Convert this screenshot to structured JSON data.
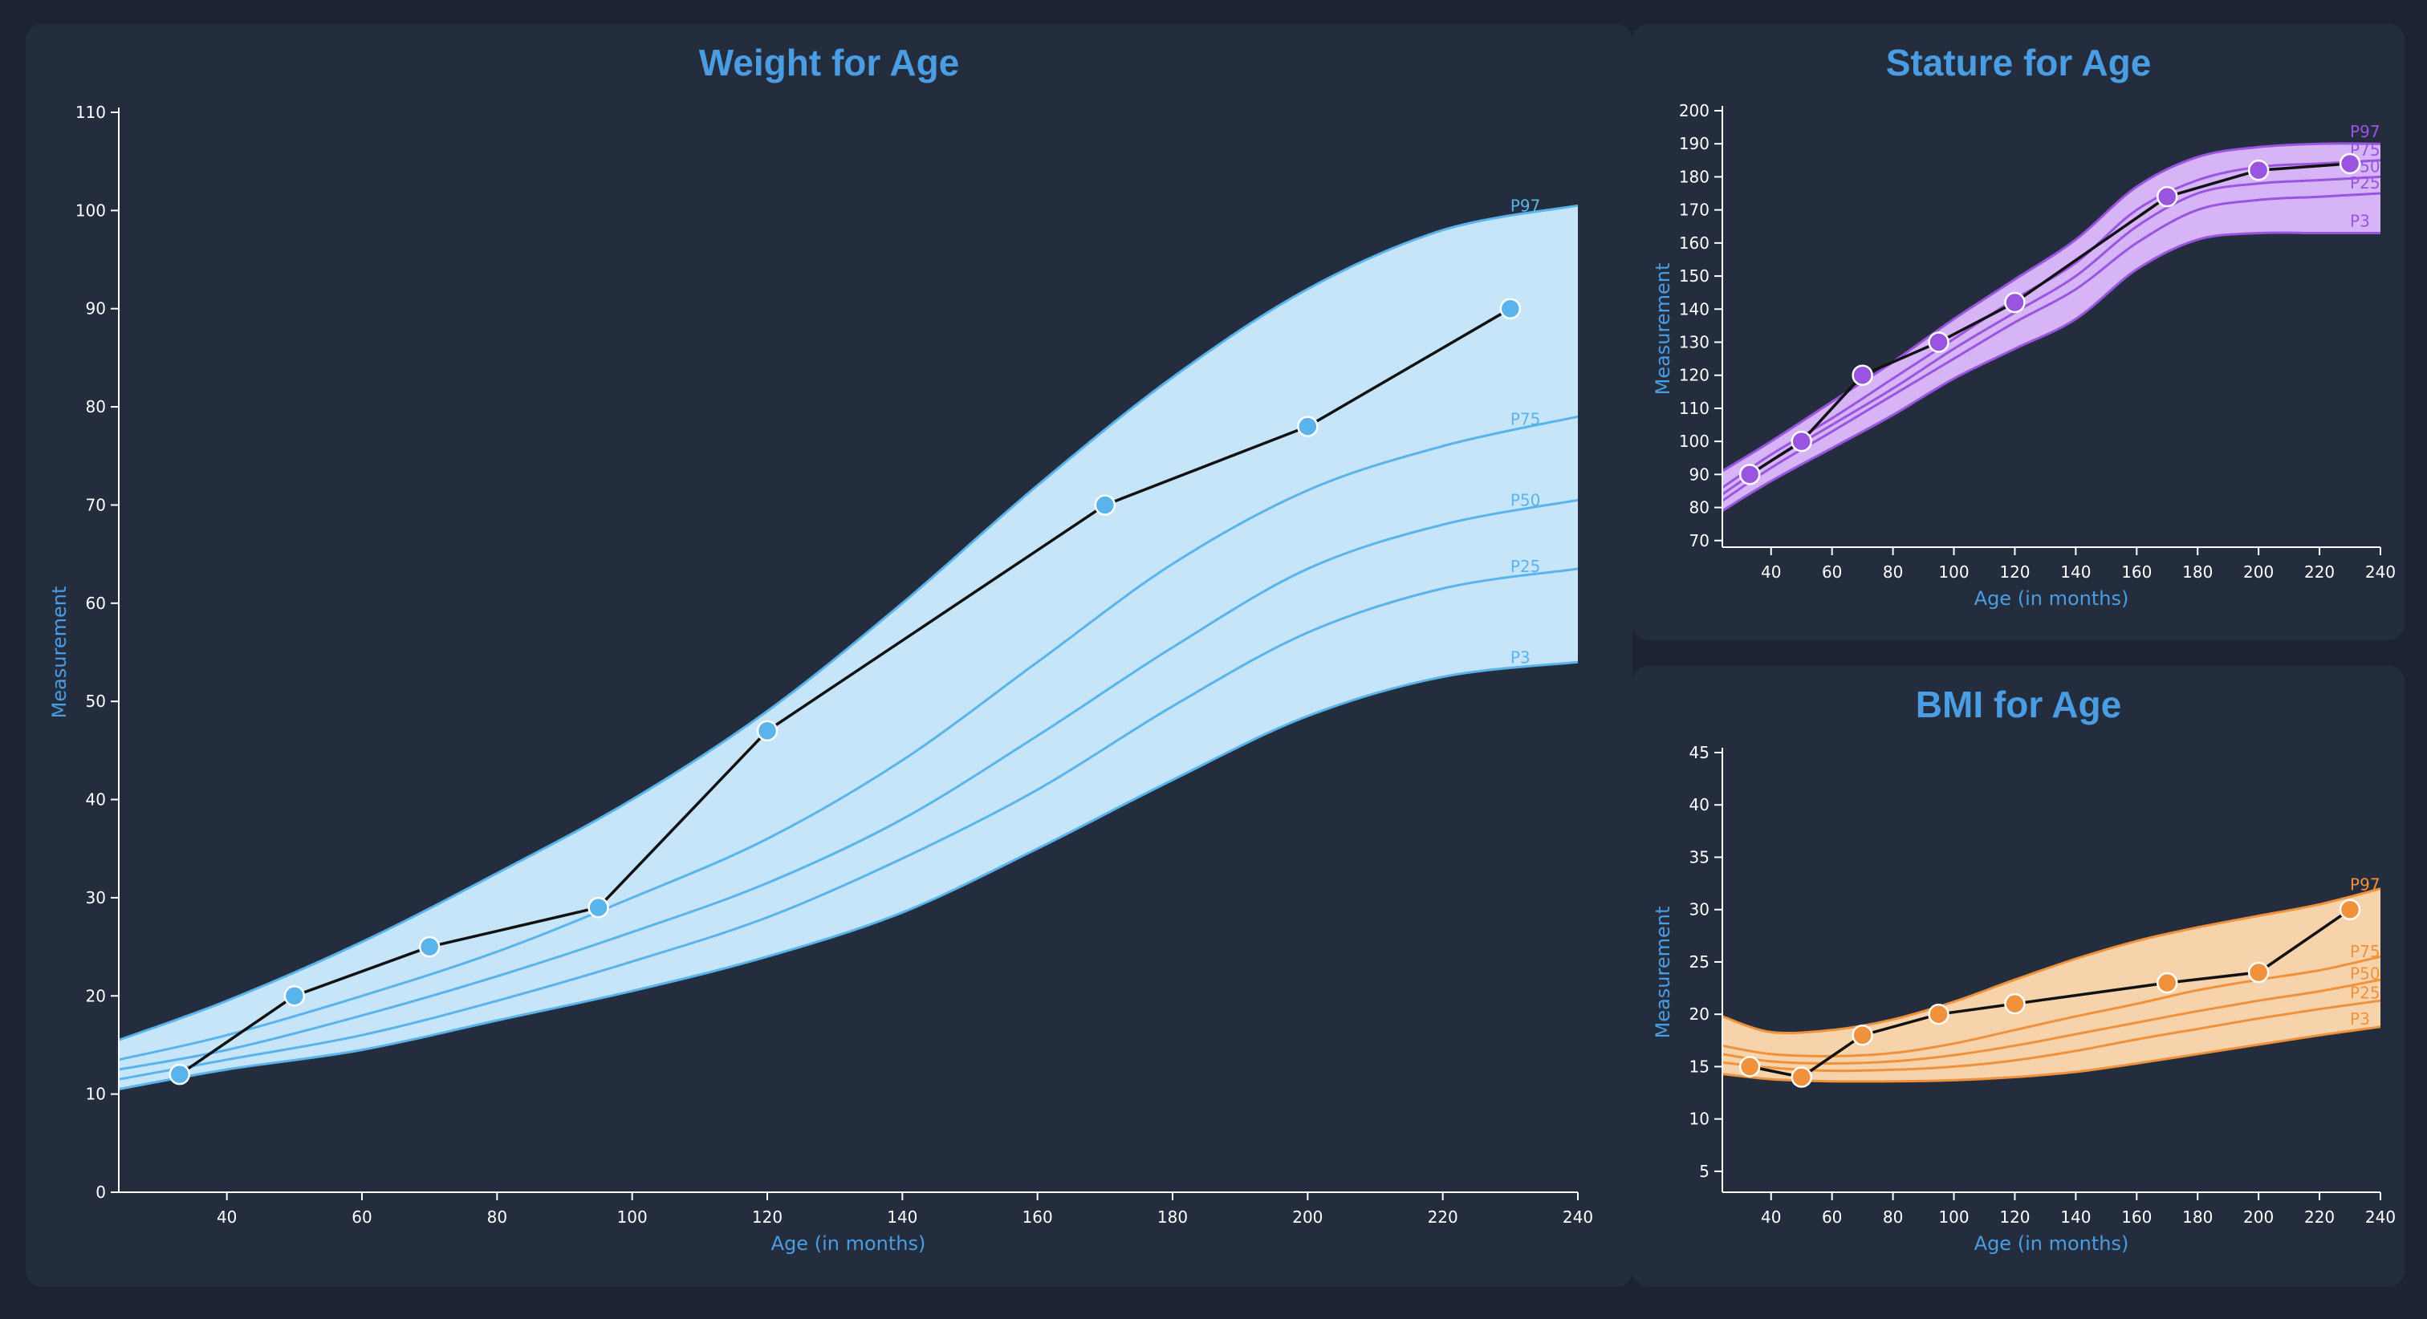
{
  "colors": {
    "background": "#1c2332",
    "panel": "#242d3e",
    "title": "#4a9de3",
    "tick_text": "#ffffff",
    "patient_line": "#111111"
  },
  "chart_data": [
    {
      "id": "weight",
      "type": "line",
      "title": "Weight for Age",
      "xlabel": "Age (in months)",
      "ylabel": "Measurement",
      "xlim": [
        24,
        240
      ],
      "ylim": [
        0,
        110
      ],
      "xticks": [
        40,
        60,
        80,
        100,
        120,
        140,
        160,
        180,
        200,
        220,
        240
      ],
      "yticks": [
        0,
        10,
        20,
        30,
        40,
        50,
        60,
        70,
        80,
        90,
        100,
        110
      ],
      "grid": false,
      "color": "#5ab4ec",
      "band_fill": "#c6e5f8",
      "percentile_x": [
        24,
        40,
        60,
        80,
        100,
        120,
        140,
        160,
        180,
        200,
        220,
        240
      ],
      "percentiles": [
        {
          "name": "P97",
          "values": [
            15.5,
            19.5,
            25.5,
            32.5,
            40.0,
            49.0,
            60.0,
            72.0,
            83.0,
            92.0,
            98.0,
            100.5
          ]
        },
        {
          "name": "P75",
          "values": [
            13.5,
            16.0,
            20.0,
            24.5,
            30.0,
            36.0,
            44.0,
            54.0,
            64.0,
            71.5,
            76.0,
            79.0
          ]
        },
        {
          "name": "P50",
          "values": [
            12.5,
            14.5,
            18.0,
            22.0,
            26.5,
            31.5,
            38.0,
            46.5,
            55.5,
            63.5,
            68.0,
            70.5
          ]
        },
        {
          "name": "P25",
          "values": [
            11.5,
            13.5,
            16.0,
            19.5,
            23.5,
            28.0,
            34.0,
            41.0,
            49.5,
            57.0,
            61.5,
            63.5
          ]
        },
        {
          "name": "P3",
          "values": [
            10.5,
            12.5,
            14.5,
            17.5,
            20.5,
            24.0,
            28.5,
            35.0,
            42.0,
            48.5,
            52.5,
            54.0
          ]
        }
      ],
      "series": [
        {
          "x": [
            33,
            50,
            70,
            95,
            120,
            170,
            200,
            230
          ],
          "values": [
            12,
            20,
            25,
            29,
            47,
            70,
            78,
            90
          ]
        }
      ]
    },
    {
      "id": "stature",
      "type": "line",
      "title": "Stature for Age",
      "xlabel": "Age (in months)",
      "ylabel": "Measurement",
      "xlim": [
        24,
        240
      ],
      "ylim": [
        68,
        200
      ],
      "xticks": [
        40,
        60,
        80,
        100,
        120,
        140,
        160,
        180,
        200,
        220,
        240
      ],
      "yticks": [
        70,
        80,
        90,
        100,
        110,
        120,
        130,
        140,
        150,
        160,
        170,
        180,
        190,
        200
      ],
      "grid": false,
      "color": "#9a55e0",
      "band_fill": "#d6b4f6",
      "percentile_x": [
        24,
        40,
        60,
        80,
        100,
        120,
        140,
        160,
        180,
        200,
        220,
        240
      ],
      "percentiles": [
        {
          "name": "P97",
          "values": [
            91,
            100,
            112,
            124,
            137,
            149,
            161,
            177,
            186,
            189,
            190,
            190
          ]
        },
        {
          "name": "P75",
          "values": [
            86,
            96,
            107,
            119,
            131,
            143,
            154,
            170,
            179,
            183,
            184,
            185
          ]
        },
        {
          "name": "P50",
          "values": [
            84,
            94,
            105,
            116,
            128,
            139,
            150,
            165,
            175,
            178,
            179,
            180
          ]
        },
        {
          "name": "P25",
          "values": [
            82,
            92,
            103,
            114,
            125,
            136,
            146,
            160,
            170,
            173,
            174,
            175
          ]
        },
        {
          "name": "P3",
          "values": [
            79,
            88,
            98,
            108,
            119,
            128,
            137,
            152,
            161,
            163,
            163,
            163
          ]
        }
      ],
      "series": [
        {
          "x": [
            33,
            50,
            70,
            95,
            120,
            170,
            200,
            230
          ],
          "values": [
            90,
            100,
            120,
            130,
            142,
            174,
            182,
            184
          ]
        }
      ]
    },
    {
      "id": "bmi",
      "type": "line",
      "title": "BMI for Age",
      "xlabel": "Age (in months)",
      "ylabel": "Measurement",
      "xlim": [
        24,
        240
      ],
      "ylim": [
        3,
        45
      ],
      "xticks": [
        40,
        60,
        80,
        100,
        120,
        140,
        160,
        180,
        200,
        220,
        240
      ],
      "yticks": [
        5,
        10,
        15,
        20,
        25,
        30,
        35,
        40,
        45
      ],
      "grid": false,
      "color": "#f0913c",
      "band_fill": "#f6d3aa",
      "percentile_x": [
        24,
        40,
        60,
        80,
        100,
        120,
        140,
        160,
        180,
        200,
        220,
        240
      ],
      "percentiles": [
        {
          "name": "P97",
          "values": [
            19.8,
            18.3,
            18.5,
            19.5,
            21.2,
            23.3,
            25.3,
            27.0,
            28.3,
            29.4,
            30.5,
            32.0
          ]
        },
        {
          "name": "P75",
          "values": [
            17.0,
            16.2,
            16.0,
            16.3,
            17.2,
            18.5,
            19.8,
            21.0,
            22.3,
            23.3,
            24.2,
            25.5
          ]
        },
        {
          "name": "P50",
          "values": [
            16.2,
            15.5,
            15.3,
            15.5,
            16.1,
            17.0,
            18.1,
            19.2,
            20.3,
            21.3,
            22.2,
            23.3
          ]
        },
        {
          "name": "P25",
          "values": [
            15.4,
            14.9,
            14.6,
            14.7,
            15.0,
            15.6,
            16.5,
            17.6,
            18.6,
            19.6,
            20.5,
            21.3
          ]
        },
        {
          "name": "P3",
          "values": [
            14.3,
            13.8,
            13.6,
            13.6,
            13.7,
            14.0,
            14.5,
            15.3,
            16.2,
            17.1,
            18.0,
            18.8
          ]
        }
      ],
      "series": [
        {
          "x": [
            33,
            50,
            70,
            95,
            120,
            170,
            200,
            230
          ],
          "values": [
            15,
            14,
            18,
            20,
            21,
            23,
            24,
            30
          ]
        }
      ]
    }
  ]
}
